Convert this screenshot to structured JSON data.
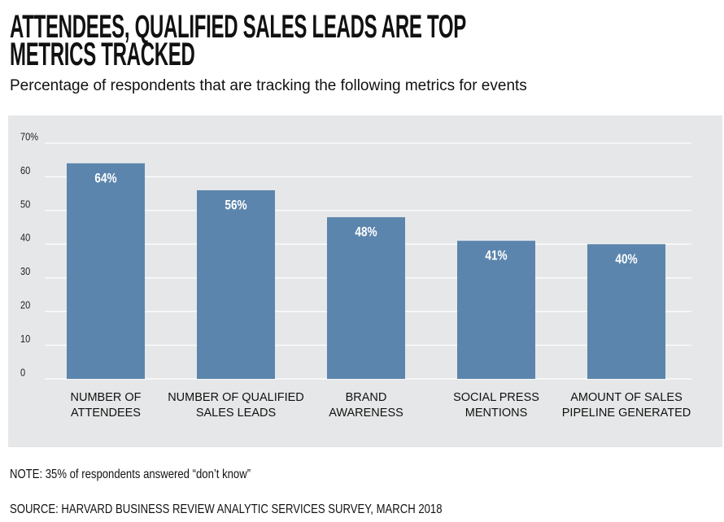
{
  "chart_data": {
    "type": "bar",
    "title": "ATTENDEES, QUALIFIED SALES LEADS ARE TOP\nMETRICS TRACKED",
    "subtitle": "Percentage of respondents that are tracking the following metrics for events",
    "categories": [
      "NUMBER OF\nATTENDEES",
      "NUMBER OF QUALIFIED\nSALES LEADS",
      "BRAND\nAWARENESS",
      "SOCIAL PRESS\nMENTIONS",
      "AMOUNT OF SALES\nPIPELINE GENERATED"
    ],
    "values": [
      64,
      56,
      48,
      41,
      40
    ],
    "value_labels": [
      "64%",
      "56%",
      "48%",
      "41%",
      "40%"
    ],
    "color": "#5b85ad",
    "ylim": [
      0,
      70
    ],
    "yticks": [
      0,
      10,
      20,
      30,
      40,
      50,
      60,
      {
        "value": 70,
        "label": "70%"
      }
    ],
    "grid": true,
    "note": "NOTE: 35% of respondents answered “don’t know”",
    "source": "SOURCE: HARVARD BUSINESS REVIEW ANALYTIC SERVICES SURVEY, MARCH 2018"
  }
}
